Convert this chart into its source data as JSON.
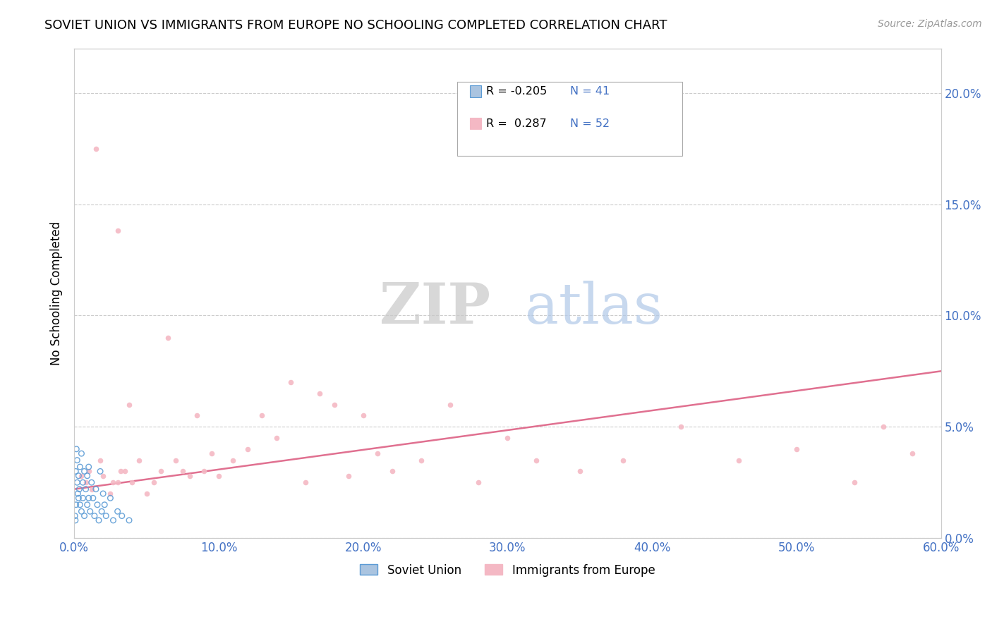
{
  "title": "SOVIET UNION VS IMMIGRANTS FROM EUROPE NO SCHOOLING COMPLETED CORRELATION CHART",
  "source": "Source: ZipAtlas.com",
  "ylabel": "No Schooling Completed",
  "xlim": [
    0.0,
    0.6
  ],
  "ylim": [
    0.0,
    0.22
  ],
  "xticks": [
    0.0,
    0.1,
    0.2,
    0.3,
    0.4,
    0.5,
    0.6
  ],
  "xtick_labels": [
    "0.0%",
    "10.0%",
    "20.0%",
    "30.0%",
    "40.0%",
    "50.0%",
    "60.0%"
  ],
  "yticks": [
    0.0,
    0.05,
    0.1,
    0.15,
    0.2
  ],
  "ytick_labels": [
    "0.0%",
    "5.0%",
    "10.0%",
    "15.0%",
    "20.0%"
  ],
  "grid_color": "#cccccc",
  "background_color": "#ffffff",
  "legend_R1": "R = -0.205",
  "legend_N1": "N = 41",
  "legend_R2": "R =  0.287",
  "legend_N2": "N = 52",
  "series1_color": "#aac4e0",
  "series1_edge": "#5b9bd5",
  "series2_color": "#f4b8c4",
  "series2_edge": "#f4b8c4",
  "series1_label": "Soviet Union",
  "series2_label": "Immigrants from Europe",
  "series2_line_color": "#e07090",
  "blue_scatter_x": [
    0.0005,
    0.0008,
    0.001,
    0.0012,
    0.0015,
    0.002,
    0.002,
    0.0025,
    0.003,
    0.003,
    0.0035,
    0.004,
    0.004,
    0.005,
    0.005,
    0.006,
    0.006,
    0.007,
    0.007,
    0.008,
    0.009,
    0.009,
    0.01,
    0.01,
    0.011,
    0.012,
    0.013,
    0.014,
    0.015,
    0.016,
    0.017,
    0.018,
    0.019,
    0.02,
    0.021,
    0.022,
    0.025,
    0.027,
    0.03,
    0.033,
    0.038
  ],
  "blue_scatter_y": [
    0.01,
    0.008,
    0.03,
    0.015,
    0.04,
    0.025,
    0.035,
    0.02,
    0.018,
    0.028,
    0.022,
    0.015,
    0.032,
    0.012,
    0.038,
    0.025,
    0.018,
    0.03,
    0.01,
    0.022,
    0.015,
    0.028,
    0.018,
    0.032,
    0.012,
    0.025,
    0.018,
    0.01,
    0.022,
    0.015,
    0.008,
    0.03,
    0.012,
    0.02,
    0.015,
    0.01,
    0.018,
    0.008,
    0.012,
    0.01,
    0.008
  ],
  "pink_scatter_x": [
    0.005,
    0.008,
    0.01,
    0.012,
    0.015,
    0.018,
    0.02,
    0.025,
    0.03,
    0.03,
    0.035,
    0.038,
    0.04,
    0.045,
    0.05,
    0.055,
    0.06,
    0.065,
    0.07,
    0.075,
    0.08,
    0.085,
    0.09,
    0.095,
    0.1,
    0.11,
    0.12,
    0.13,
    0.14,
    0.15,
    0.16,
    0.17,
    0.18,
    0.19,
    0.2,
    0.21,
    0.22,
    0.24,
    0.26,
    0.28,
    0.3,
    0.32,
    0.35,
    0.38,
    0.42,
    0.46,
    0.5,
    0.54,
    0.56,
    0.58,
    0.027,
    0.032
  ],
  "pink_scatter_y": [
    0.028,
    0.025,
    0.03,
    0.022,
    0.175,
    0.035,
    0.028,
    0.02,
    0.138,
    0.025,
    0.03,
    0.06,
    0.025,
    0.035,
    0.02,
    0.025,
    0.03,
    0.09,
    0.035,
    0.03,
    0.028,
    0.055,
    0.03,
    0.038,
    0.028,
    0.035,
    0.04,
    0.055,
    0.045,
    0.07,
    0.025,
    0.065,
    0.06,
    0.028,
    0.055,
    0.038,
    0.03,
    0.035,
    0.06,
    0.025,
    0.045,
    0.035,
    0.03,
    0.035,
    0.05,
    0.035,
    0.04,
    0.025,
    0.05,
    0.038,
    0.025,
    0.03
  ],
  "pink_line_x": [
    0.0,
    0.6
  ],
  "pink_line_y": [
    0.022,
    0.075
  ],
  "tick_color": "#4472c4",
  "tick_fontsize": 12,
  "title_fontsize": 13,
  "axis_label_fontsize": 12,
  "dot_size": 30
}
